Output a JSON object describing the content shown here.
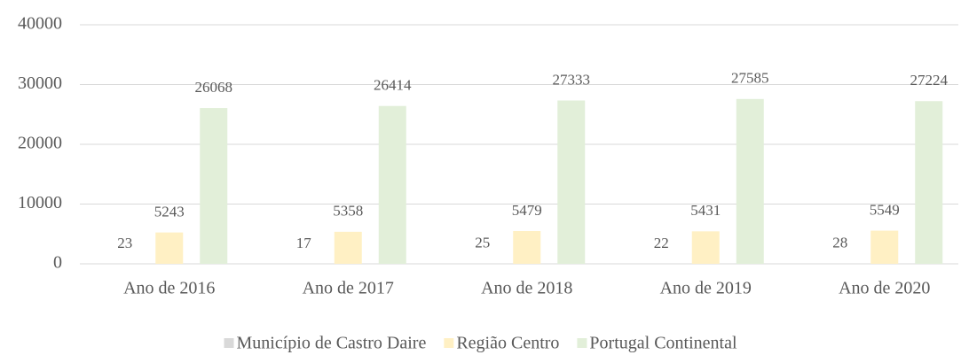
{
  "chart_data": {
    "type": "bar",
    "categories": [
      "Ano de 2016",
      "Ano de 2017",
      "Ano de 2018",
      "Ano de 2019",
      "Ano de 2020"
    ],
    "series": [
      {
        "name": "Município de Castro Daire",
        "color": "#d9d9d9",
        "values": [
          23,
          17,
          25,
          22,
          28
        ]
      },
      {
        "name": "Região Centro",
        "color": "#fff0c4",
        "values": [
          5243,
          5358,
          5479,
          5431,
          5549
        ]
      },
      {
        "name": "Portugal Continental",
        "color": "#e2efd9",
        "values": [
          26068,
          26414,
          27333,
          27585,
          27224
        ]
      }
    ],
    "ylim": [
      0,
      40000
    ],
    "yticks": [
      0,
      10000,
      20000,
      30000,
      40000
    ],
    "grid": true,
    "legend": "bottom"
  }
}
